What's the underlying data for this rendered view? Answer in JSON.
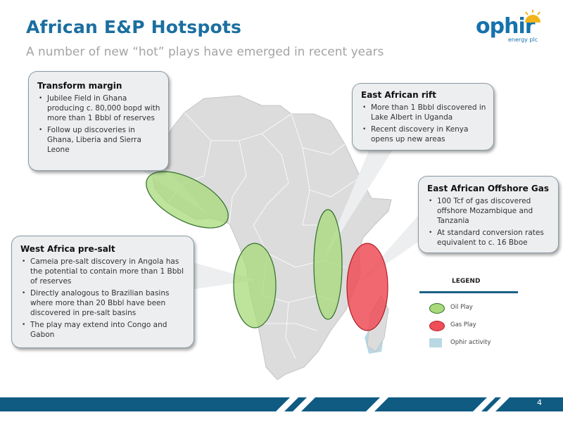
{
  "header": {
    "title": "African E&P Hotspots",
    "subtitle": "A number of new “hot” plays have emerged in recent years"
  },
  "logo": {
    "word": "ophir",
    "sub": "energy plc"
  },
  "colors": {
    "title": "#1b6fa0",
    "oil_play": "#a8d97a",
    "gas_play": "#ef4e57",
    "ophir_activity": "#b8d8e4",
    "land": "#dcdcdc",
    "footer": "#0f5b82"
  },
  "callouts": {
    "transform": {
      "title": "Transform margin",
      "bullets": [
        "Jubilee Field in Ghana producing c. 80,000 bopd with more than 1 Bbbl of reserves",
        "Follow up discoveries in Ghana, Liberia and Sierra Leone"
      ]
    },
    "rift": {
      "title": "East African rift",
      "bullets": [
        "More than 1 Bbbl discovered in Lake Albert in Uganda",
        "Recent discovery in Kenya opens up new areas"
      ]
    },
    "offshore": {
      "title": "East African Offshore Gas",
      "bullets": [
        "100 Tcf of gas discovered offshore Mozambique and Tanzania",
        "At standard conversion rates equivalent to c. 16 Bboe"
      ]
    },
    "presalt": {
      "title": "West Africa pre-salt",
      "bullets": [
        "Cameia pre-salt discovery in Angola has the potential to contain more than 1 Bbbl of reserves",
        "Directly analogous to Brazilian basins where more than 20 Bbbl have been discovered in pre-salt basins",
        "The play may extend into Congo and Gabon"
      ]
    }
  },
  "legend": {
    "title": "LEGEND",
    "items": [
      {
        "label": "Oil Play",
        "color": "#a8d97a"
      },
      {
        "label": "Gas Play",
        "color": "#ef4e57"
      },
      {
        "label": "Ophir activity",
        "color": "#b8d8e4"
      }
    ]
  },
  "footer": {
    "page": "4"
  }
}
